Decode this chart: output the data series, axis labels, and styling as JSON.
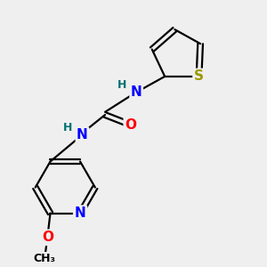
{
  "background_color": "#efefef",
  "atom_colors": {
    "C": "#000000",
    "N": "#0000ff",
    "O": "#ff0000",
    "S": "#999900",
    "H": "#007070"
  },
  "bond_color": "#000000",
  "bond_width": 1.6,
  "font_size_atom": 10
}
